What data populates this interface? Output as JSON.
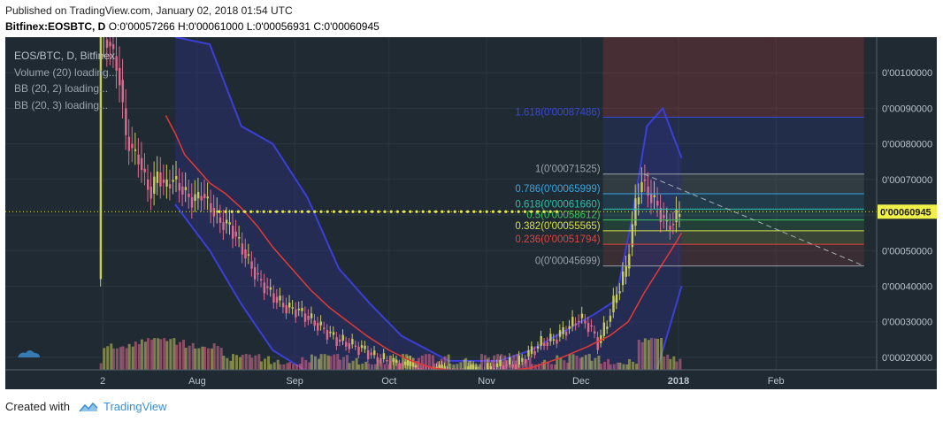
{
  "header": {
    "published": "Published on TradingView.com, January 02, 2018 01:54 UTC",
    "symbol": "Bitfinex:EOSBTC, D",
    "ohlc": "O:0'00057266 H:0'00061000 L:0'00056931 C:0'00060945"
  },
  "legend": {
    "main": "EOS/BTC, D, Bitfinex",
    "items": [
      "Volume (20) loading...",
      "BB (20, 2) loading...",
      "BB (20, 3) loading..."
    ]
  },
  "footer": {
    "created": "Created with",
    "brand": "TradingView"
  },
  "colors": {
    "background": "#1f2a33",
    "grid": "#2b3740",
    "up": "#c8cc5a",
    "down": "#e06a8c",
    "ma": "#e23a35",
    "bb": "#3b3fd8",
    "bb_fill": "#2a2f7a",
    "price_line": "#e8e84e"
  },
  "chart_data": {
    "type": "candlestick",
    "title": "EOS/BTC, D, Bitfinex",
    "y_axis": {
      "labels": [
        "0'00100000",
        "0'00090000",
        "0'00080000",
        "0'00070000",
        "0'00060000",
        "0'00050000",
        "0'00040000",
        "0'00030000",
        "0'00020000"
      ],
      "values": [
        0.001,
        0.0009,
        0.0008,
        0.0007,
        0.0006,
        0.0005,
        0.0004,
        0.0003,
        0.0002
      ],
      "range": [
        0.000165,
        0.0011
      ]
    },
    "x_axis": {
      "labels": [
        "2",
        "Aug",
        "Sep",
        "Oct",
        "Nov",
        "Dec",
        "2018",
        "Feb"
      ],
      "dates": [
        "2017-07-02",
        "2017-08-01",
        "2017-09-01",
        "2017-10-01",
        "2017-11-01",
        "2017-12-01",
        "2018-01-01",
        "2018-02-01"
      ]
    },
    "last_price": {
      "label": "0'00060945",
      "value": 0.00060945
    },
    "fibonacci": [
      {
        "level": "1.618",
        "label": "1.618(0'00087486)",
        "value": 0.00087486,
        "color": "#3b48d8"
      },
      {
        "level": "1",
        "label": "1(0'00071525)",
        "value": 0.00071525,
        "color": "#9aa0a6"
      },
      {
        "level": "0.786",
        "label": "0.786(0'00065999)",
        "value": 0.00065999,
        "color": "#3aa6e0"
      },
      {
        "level": "0.618",
        "label": "0.618(0'00061660)",
        "value": 0.0006166,
        "color": "#2fbfa8"
      },
      {
        "level": "0.5",
        "label": "0.5(0'00058612)",
        "value": 0.00058612,
        "color": "#3ec45a"
      },
      {
        "level": "0.382",
        "label": "0.382(0'00055565)",
        "value": 0.00055565,
        "color": "#d8e04a"
      },
      {
        "level": "0.236",
        "label": "0.236(0'00051794)",
        "value": 0.00051794,
        "color": "#e0433f"
      },
      {
        "level": "0",
        "label": "0(0'00045699)",
        "value": 0.00045699,
        "color": "#9aa0a6"
      }
    ],
    "fib_range_dates": [
      "2017-12-08",
      "2018-03-01"
    ],
    "trendline": {
      "from": [
        "2017-12-21",
        0.00071525
      ],
      "to": [
        "2018-03-01",
        0.00045699
      ]
    },
    "price_points": [
      [
        "2017-07-01",
        0.00042
      ],
      [
        "2017-07-02",
        0.0011
      ],
      [
        "2017-07-05",
        0.00108
      ],
      [
        "2017-07-08",
        0.00098
      ],
      [
        "2017-07-10",
        0.00082
      ],
      [
        "2017-07-12",
        0.00078
      ],
      [
        "2017-07-14",
        0.00076
      ],
      [
        "2017-07-16",
        0.0007
      ],
      [
        "2017-07-18",
        0.00066
      ],
      [
        "2017-07-20",
        0.00072
      ],
      [
        "2017-07-22",
        0.00068
      ],
      [
        "2017-07-25",
        0.0007
      ],
      [
        "2017-07-28",
        0.00067
      ],
      [
        "2017-07-31",
        0.00064
      ],
      [
        "2017-08-03",
        0.00066
      ],
      [
        "2017-08-06",
        0.00062
      ],
      [
        "2017-08-09",
        0.00058
      ],
      [
        "2017-08-12",
        0.00057
      ],
      [
        "2017-08-15",
        0.00052
      ],
      [
        "2017-08-18",
        0.00047
      ],
      [
        "2017-08-21",
        0.00042
      ],
      [
        "2017-08-24",
        0.00039
      ],
      [
        "2017-08-27",
        0.00036
      ],
      [
        "2017-08-30",
        0.00034
      ],
      [
        "2017-09-03",
        0.00033
      ],
      [
        "2017-09-06",
        0.00031
      ],
      [
        "2017-09-09",
        0.00029
      ],
      [
        "2017-09-12",
        0.00027
      ],
      [
        "2017-09-15",
        0.00025
      ],
      [
        "2017-09-18",
        0.00024
      ],
      [
        "2017-09-21",
        0.00023
      ],
      [
        "2017-09-24",
        0.00022
      ],
      [
        "2017-09-27",
        0.0002
      ],
      [
        "2017-10-01",
        0.00019
      ],
      [
        "2017-10-05",
        0.00018
      ],
      [
        "2017-10-10",
        0.00017
      ],
      [
        "2017-10-15",
        0.00016
      ],
      [
        "2017-10-20",
        0.00016
      ],
      [
        "2017-10-25",
        0.00016
      ],
      [
        "2017-10-30",
        0.00016
      ],
      [
        "2017-11-03",
        0.00017
      ],
      [
        "2017-11-07",
        0.00018
      ],
      [
        "2017-11-11",
        0.00018
      ],
      [
        "2017-11-15",
        0.00021
      ],
      [
        "2017-11-19",
        0.00024
      ],
      [
        "2017-11-23",
        0.00025
      ],
      [
        "2017-11-27",
        0.00028
      ],
      [
        "2017-12-01",
        0.00031
      ],
      [
        "2017-12-04",
        0.00029
      ],
      [
        "2017-12-07",
        0.00024
      ],
      [
        "2017-12-10",
        0.0003
      ],
      [
        "2017-12-13",
        0.00038
      ],
      [
        "2017-12-16",
        0.00045
      ],
      [
        "2017-12-19",
        0.00063
      ],
      [
        "2017-12-21",
        0.0007
      ],
      [
        "2017-12-23",
        0.00066
      ],
      [
        "2017-12-25",
        0.00064
      ],
      [
        "2017-12-27",
        0.0006
      ],
      [
        "2017-12-29",
        0.00057
      ],
      [
        "2017-12-31",
        0.00058
      ],
      [
        "2018-01-02",
        0.00061
      ]
    ],
    "ma20": [
      [
        "2017-07-22",
        0.00088
      ],
      [
        "2017-07-25",
        0.00083
      ],
      [
        "2017-07-28",
        0.00077
      ],
      [
        "2017-08-01",
        0.00073
      ],
      [
        "2017-08-05",
        0.00069
      ],
      [
        "2017-08-10",
        0.00066
      ],
      [
        "2017-08-15",
        0.00062
      ],
      [
        "2017-08-20",
        0.00057
      ],
      [
        "2017-08-25",
        0.00051
      ],
      [
        "2017-08-31",
        0.00045
      ],
      [
        "2017-09-06",
        0.00039
      ],
      [
        "2017-09-12",
        0.00034
      ],
      [
        "2017-09-18",
        0.0003
      ],
      [
        "2017-09-24",
        0.00026
      ],
      [
        "2017-10-01",
        0.00022
      ],
      [
        "2017-10-08",
        0.00019
      ],
      [
        "2017-10-15",
        0.00017
      ],
      [
        "2017-10-25",
        0.00016
      ],
      [
        "2017-11-05",
        0.00016
      ],
      [
        "2017-11-15",
        0.00017
      ],
      [
        "2017-11-25",
        0.0002
      ],
      [
        "2017-12-03",
        0.00023
      ],
      [
        "2017-12-10",
        0.00026
      ],
      [
        "2017-12-16",
        0.0003
      ],
      [
        "2017-12-21",
        0.00038
      ],
      [
        "2017-12-26",
        0.00045
      ],
      [
        "2017-12-31",
        0.00052
      ],
      [
        "2018-01-02",
        0.00055
      ]
    ],
    "bb_upper": [
      [
        "2017-07-25",
        0.0011
      ],
      [
        "2017-08-05",
        0.00108
      ],
      [
        "2017-08-15",
        0.00085
      ],
      [
        "2017-08-25",
        0.0008
      ],
      [
        "2017-09-05",
        0.00065
      ],
      [
        "2017-09-15",
        0.00045
      ],
      [
        "2017-09-25",
        0.00035
      ],
      [
        "2017-10-05",
        0.00026
      ],
      [
        "2017-10-20",
        0.00019
      ],
      [
        "2017-11-05",
        0.00019
      ],
      [
        "2017-11-15",
        0.00022
      ],
      [
        "2017-11-25",
        0.00027
      ],
      [
        "2017-12-05",
        0.00032
      ],
      [
        "2017-12-12",
        0.00036
      ],
      [
        "2017-12-17",
        0.00058
      ],
      [
        "2017-12-22",
        0.00085
      ],
      [
        "2017-12-27",
        0.0009
      ],
      [
        "2018-01-02",
        0.00076
      ]
    ],
    "bb_lower": [
      [
        "2017-07-25",
        0.00063
      ],
      [
        "2017-08-05",
        0.0005
      ],
      [
        "2017-08-15",
        0.00035
      ],
      [
        "2017-08-25",
        0.00022
      ],
      [
        "2017-09-05",
        0.00016
      ],
      [
        "2017-09-15",
        0.00016
      ],
      [
        "2017-10-20",
        0.00016
      ],
      [
        "2017-11-05",
        0.00016
      ],
      [
        "2017-11-20",
        0.00016
      ],
      [
        "2017-12-05",
        0.00016
      ],
      [
        "2017-12-15",
        0.00016
      ],
      [
        "2017-12-25",
        0.00016
      ],
      [
        "2018-01-02",
        0.0004
      ]
    ]
  }
}
